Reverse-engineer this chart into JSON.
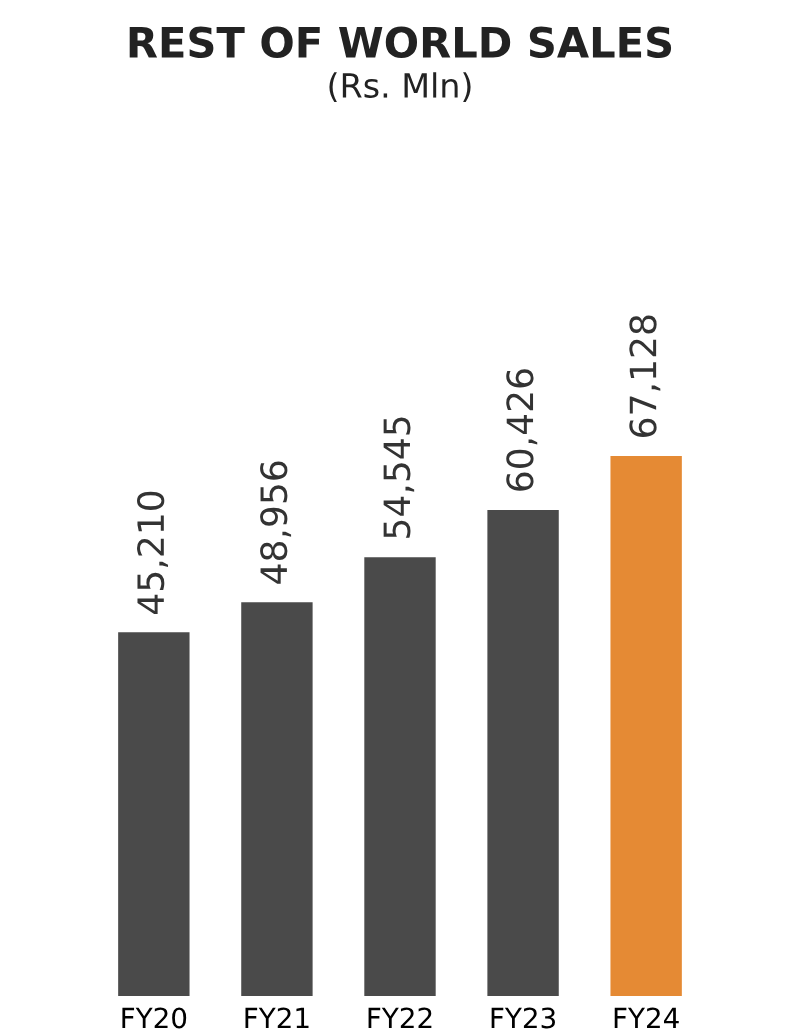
{
  "chart_data": {
    "type": "bar",
    "title": "REST OF WORLD SALES",
    "subtitle": "(Rs. Mln)",
    "categories": [
      "FY20",
      "FY21",
      "FY22",
      "FY23",
      "FY24"
    ],
    "values": [
      45210,
      48956,
      54545,
      60426,
      67128
    ],
    "colors": [
      "#4a4a4a",
      "#4a4a4a",
      "#4a4a4a",
      "#4a4a4a",
      "#e58a34"
    ],
    "value_labels": [
      "45,210",
      "48,956",
      "54,545",
      "60,426",
      "67,128"
    ],
    "grid": false,
    "legend": false
  }
}
